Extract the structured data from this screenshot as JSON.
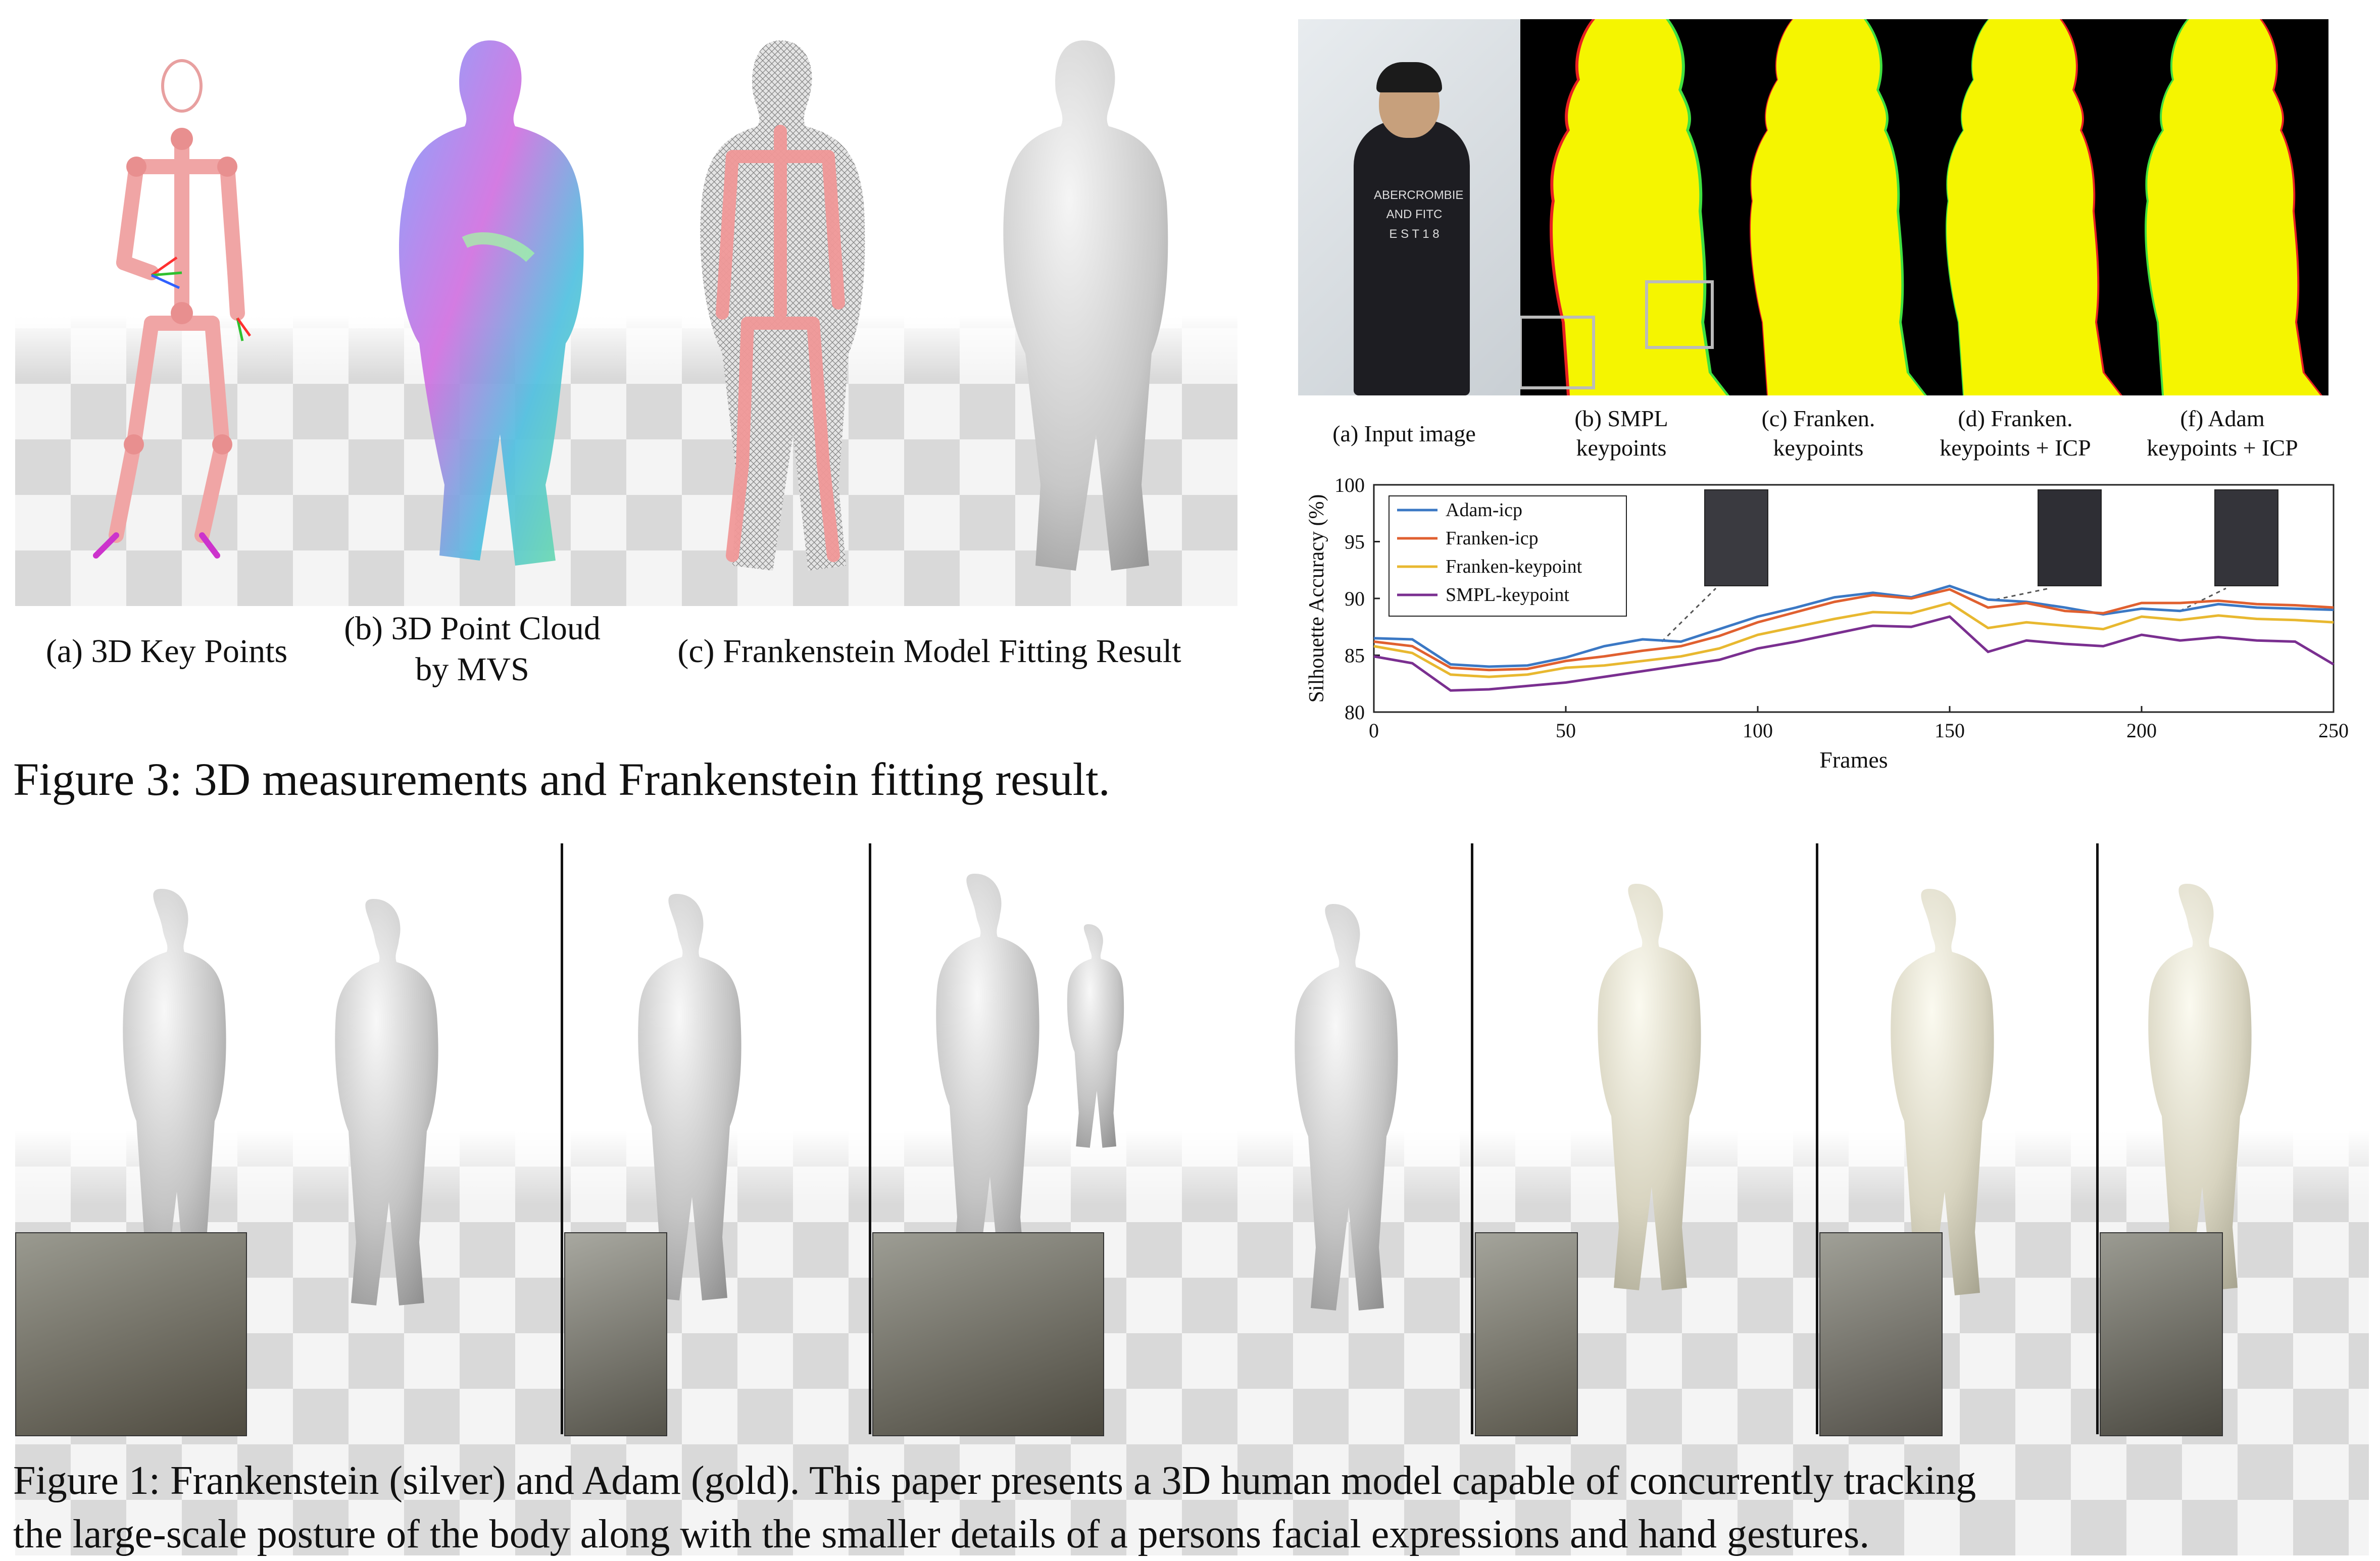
{
  "fig3": {
    "sub_a": "(a) 3D Key Points",
    "sub_b_line1": "(b) 3D Point Cloud",
    "sub_b_line2": "by MVS",
    "sub_c": "(c) Frankenstein Model Fitting Result",
    "caption": "Figure 3: 3D measurements and Frankenstein fitting result."
  },
  "fig_right": {
    "labels": [
      {
        "l1": "(a) Input image",
        "l2": ""
      },
      {
        "l1": "(b) SMPL",
        "l2": "keypoints"
      },
      {
        "l1": "(c) Franken.",
        "l2": "keypoints"
      },
      {
        "l1": "(d) Franken.",
        "l2": "keypoints + ICP"
      },
      {
        "l1": "(f) Adam",
        "l2": "keypoints + ICP"
      }
    ],
    "shirt_text": [
      "ABERCROMBIE",
      "AND FITC",
      "E S T 1 8"
    ],
    "colors": {
      "yellow": "#f5f500",
      "red": "#e82020",
      "green": "#40e040"
    }
  },
  "chart_data": {
    "type": "line",
    "xlabel": "Frames",
    "ylabel": "Silhouette Accuracy (%)",
    "xlim": [
      0,
      250
    ],
    "ylim": [
      80,
      100
    ],
    "xticks": [
      0,
      50,
      100,
      150,
      200,
      250
    ],
    "yticks": [
      80,
      85,
      90,
      95,
      100
    ],
    "legend_position": "top-left",
    "x": [
      0,
      10,
      20,
      30,
      40,
      50,
      60,
      70,
      80,
      90,
      100,
      110,
      120,
      130,
      140,
      150,
      160,
      170,
      180,
      190,
      200,
      210,
      220,
      230,
      240,
      250
    ],
    "series": [
      {
        "name": "Adam-icp",
        "color": "#3b78c4",
        "values": [
          86.5,
          86.4,
          84.2,
          84.0,
          84.1,
          84.8,
          85.8,
          86.4,
          86.2,
          87.3,
          88.4,
          89.2,
          90.1,
          90.5,
          90.1,
          91.1,
          89.9,
          89.7,
          89.2,
          88.6,
          89.1,
          88.9,
          89.5,
          89.2,
          89.1,
          89.0
        ]
      },
      {
        "name": "Franken-icp",
        "color": "#e06030",
        "values": [
          86.2,
          85.8,
          83.9,
          83.7,
          83.8,
          84.5,
          84.9,
          85.4,
          85.8,
          86.7,
          87.9,
          88.8,
          89.7,
          90.3,
          90.0,
          90.8,
          89.2,
          89.6,
          88.9,
          88.7,
          89.6,
          89.6,
          89.8,
          89.5,
          89.4,
          89.2
        ]
      },
      {
        "name": "Franken-keypoint",
        "color": "#e8b830",
        "values": [
          85.8,
          85.2,
          83.3,
          83.1,
          83.3,
          83.9,
          84.1,
          84.5,
          84.9,
          85.6,
          86.8,
          87.5,
          88.2,
          88.8,
          88.7,
          89.6,
          87.4,
          87.9,
          87.6,
          87.3,
          88.4,
          88.1,
          88.5,
          88.2,
          88.1,
          87.9
        ]
      },
      {
        "name": "SMPL-keypoint",
        "color": "#7a2f90",
        "values": [
          84.9,
          84.3,
          81.9,
          82.0,
          82.3,
          82.6,
          83.1,
          83.6,
          84.1,
          84.6,
          85.6,
          86.2,
          86.9,
          87.6,
          87.5,
          88.4,
          85.3,
          86.3,
          86.0,
          85.8,
          86.8,
          86.3,
          86.6,
          86.3,
          86.2,
          84.2
        ]
      }
    ]
  },
  "fig1": {
    "caption_line1": "Figure 1: Frankenstein (silver) and Adam (gold). This paper presents a 3D human model capable of concurrently tracking",
    "caption_line2": "the large-scale posture of the body along with the smaller details of a persons facial expressions and hand gestures."
  }
}
